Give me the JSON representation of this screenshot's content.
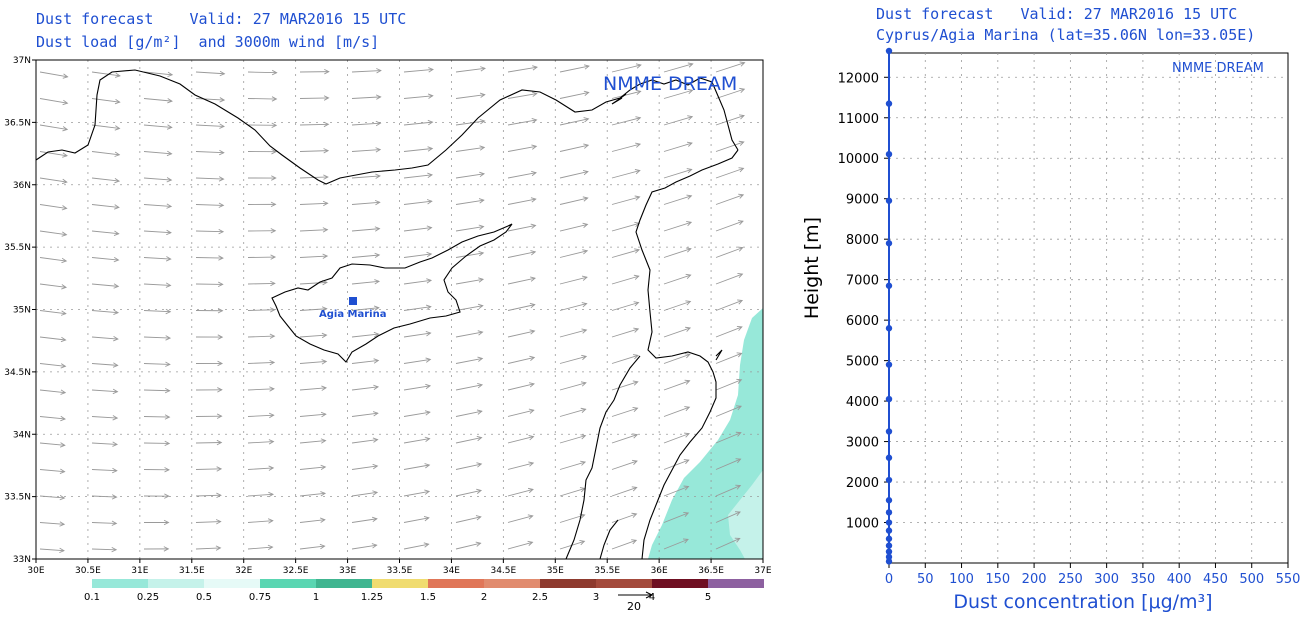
{
  "left_panel": {
    "title_line1": "Dust forecast    Valid: 27 MAR2016 15 UTC",
    "title_line2": "Dust load [g/m²]  and 3000m wind [m/s]",
    "watermark": "NMME DREAM",
    "station_label": "Agia Marina",
    "lat_ticks": [
      "37N",
      "36.5N",
      "36N",
      "35.5N",
      "35N",
      "34.5N",
      "34N",
      "33.5N",
      "33N"
    ],
    "lon_ticks": [
      "30E",
      "30.5E",
      "31E",
      "31.5E",
      "32E",
      "32.5E",
      "33E",
      "33.5E",
      "34E",
      "34.5E",
      "35E",
      "35.5E",
      "36E",
      "36.5E",
      "37E"
    ],
    "legend_colors": [
      "#97e8d9",
      "#c5f2ea",
      "#e6faf7",
      "#5ad6b2",
      "#40b590",
      "#f0dc70",
      "#e07658",
      "#e18b6e",
      "#8e3a2e",
      "#a44a3c",
      "#6f0f22",
      "#8d60a0"
    ],
    "legend_labels": [
      "0.1",
      "0.25",
      "0.5",
      "0.75",
      "1",
      "1.25",
      "1.5",
      "2",
      "2.5",
      "3",
      "4",
      "5"
    ],
    "wind_ref_label": "20"
  },
  "right_panel": {
    "title_line1": "Dust forecast   Valid: 27 MAR2016 15 UTC",
    "title_line2": "Cyprus/Agia Marina (lat=35.06N lon=33.05E)",
    "watermark": "NMME DREAM",
    "ylabel": "Height [m]",
    "xlabel": "Dust concentration [μg/m³]"
  },
  "chart_data": {
    "type": "line",
    "title": "Dust forecast   Valid: 27 MAR2016 15 UTC",
    "subtitle": "Cyprus/Agia Marina (lat=35.06N lon=33.05E)",
    "xlabel": "Dust concentration [μg/m³]",
    "ylabel": "Height [m]",
    "xlim": [
      0,
      550
    ],
    "ylim": [
      0,
      12600
    ],
    "x_ticks": [
      0,
      50,
      100,
      150,
      200,
      250,
      300,
      350,
      400,
      450,
      500,
      550
    ],
    "y_ticks": [
      1000,
      2000,
      3000,
      4000,
      5000,
      6000,
      7000,
      8000,
      9000,
      10000,
      11000,
      12000
    ],
    "grid": true,
    "series_color": "#1f4fd1",
    "series": [
      {
        "points": [
          {
            "x": 0,
            "y": 40
          },
          {
            "x": 0,
            "y": 150
          },
          {
            "x": 0,
            "y": 280
          },
          {
            "x": 0,
            "y": 430
          },
          {
            "x": 0,
            "y": 600
          },
          {
            "x": 0,
            "y": 800
          },
          {
            "x": 0,
            "y": 1000
          },
          {
            "x": 0,
            "y": 1250
          },
          {
            "x": 0,
            "y": 1550
          },
          {
            "x": 0,
            "y": 2050
          },
          {
            "x": 0,
            "y": 2600
          },
          {
            "x": 0,
            "y": 3250
          },
          {
            "x": 0,
            "y": 4050
          },
          {
            "x": 0,
            "y": 4900
          },
          {
            "x": 0,
            "y": 5800
          },
          {
            "x": 0,
            "y": 6850
          },
          {
            "x": 0,
            "y": 7900
          },
          {
            "x": 0,
            "y": 8950
          },
          {
            "x": 0,
            "y": 10100
          },
          {
            "x": 0,
            "y": 11350
          },
          {
            "x": 0,
            "y": 12650
          }
        ]
      }
    ]
  }
}
